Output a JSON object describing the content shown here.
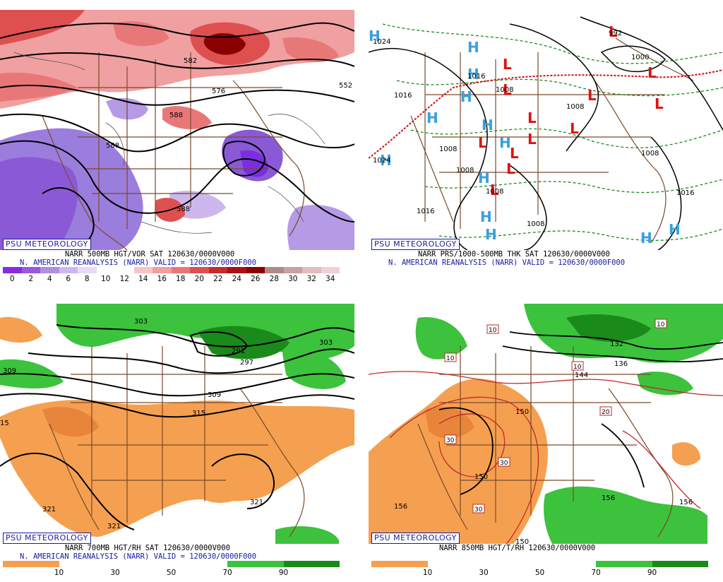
{
  "panels": [
    {
      "brand": "PSU METEOROLOGY",
      "line1": "NARR 500MB HGT/VOR SAT 120630/0000V000",
      "line2": "N. AMERICAN REANALYSIS (NARR) VALID = 120630/0000F000",
      "contour_labels": [
        "582",
        "576",
        "588",
        "588",
        "588",
        "552"
      ],
      "colorbar": {
        "colors": [
          "#8a2be2",
          "#9b59d9",
          "#b08ee0",
          "#cdb8ee",
          "#e6dcf6",
          "#ffffff",
          "#ffffff",
          "#f7c4c4",
          "#f0a0a0",
          "#e87878",
          "#de5050",
          "#c62a2a",
          "#a81212",
          "#8a0000",
          "#b08a8a",
          "#caa0a0",
          "#e0bcbc",
          "#f2d0d8"
        ],
        "ticks": [
          "0",
          "2",
          "4",
          "6",
          "8",
          "10",
          "12",
          "14",
          "16",
          "18",
          "20",
          "22",
          "24",
          "26",
          "28",
          "30",
          "32",
          "34"
        ]
      }
    },
    {
      "brand": "PSU METEOROLOGY",
      "line1": "NARR PRS/1000-500MB THK SAT 120630/0000V000",
      "line2": "N. AMERICAN REANALYSIS (NARR) VALID = 120630/0000F000",
      "high_symbol": "H",
      "low_symbol": "L",
      "isobar_labels": [
        "992",
        "1000",
        "1024",
        "1016",
        "1016",
        "1024",
        "1008",
        "1008",
        "1008",
        "1008",
        "1008",
        "1016",
        "1016",
        "1008",
        "1008"
      ]
    },
    {
      "brand": "PSU METEOROLOGY",
      "line1": "NARR 700MB HGT/RH SAT 120630/0000V000",
      "line2": "N. AMERICAN REANALYSIS (NARR) VALID = 120630/0000F000",
      "contour_labels": [
        "303",
        "291",
        "297",
        "303",
        "309",
        "309",
        "315",
        "15",
        "321",
        "321",
        "321"
      ],
      "colorbar": {
        "colors": [
          "#f5a050",
          "#ffffff",
          "#ffffff",
          "#ffffff",
          "#3cc23c",
          "#1a8a1a"
        ],
        "ticks": [
          "10",
          "30",
          "50",
          "70",
          "90"
        ]
      }
    },
    {
      "brand": "PSU METEOROLOGY",
      "line1": "NARR 850MB HGT/T/RH 120630/0000V000",
      "line2": "",
      "contour_labels": [
        "132",
        "136",
        "144",
        "150",
        "150",
        "156",
        "156",
        "156",
        "150"
      ],
      "temp_labels": [
        "10",
        "10",
        "10",
        "10",
        "20",
        "30",
        "30",
        "30"
      ],
      "colorbar": {
        "colors": [
          "#f5a050",
          "#ffffff",
          "#ffffff",
          "#ffffff",
          "#3cc23c",
          "#1a8a1a"
        ],
        "ticks": [
          "10",
          "30",
          "50",
          "70",
          "90"
        ]
      }
    }
  ]
}
